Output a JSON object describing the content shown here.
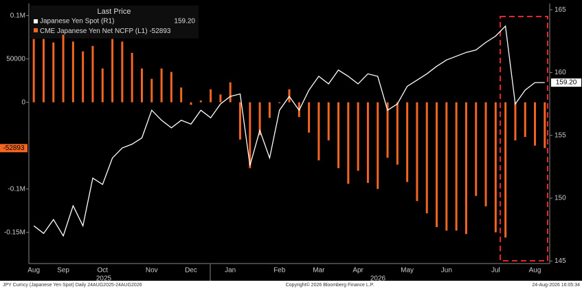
{
  "chart_data": {
    "type": "bar_line",
    "legend_title": "Last Price",
    "categories": [
      "Aug",
      null,
      null,
      "Sep",
      null,
      null,
      null,
      "Oct",
      null,
      null,
      null,
      null,
      "Nov",
      null,
      null,
      null,
      "Dec",
      null,
      null,
      null,
      "Jan",
      null,
      null,
      null,
      null,
      "Feb",
      null,
      null,
      null,
      "Mar",
      null,
      null,
      null,
      "Apr",
      null,
      null,
      null,
      null,
      "May",
      null,
      null,
      null,
      "Jun",
      null,
      null,
      null,
      null,
      "Jul",
      null,
      null,
      null,
      "Aug",
      null
    ],
    "year_labels": [
      "2025",
      "2026"
    ],
    "series": [
      {
        "name": "CME Japanese Yen Net NCFP (L1)",
        "color": "#f26522",
        "axis": "y",
        "values": [
          73000,
          73000,
          69000,
          78000,
          70000,
          58700,
          65000,
          39000,
          73000,
          70000,
          57000,
          39000,
          27000,
          39000,
          35000,
          17000,
          -3000,
          2000,
          15000,
          9000,
          23000,
          -43000,
          -76000,
          -38000,
          -18000,
          -1000,
          15000,
          -17000,
          -35000,
          -67000,
          -44000,
          -76000,
          -94000,
          -79000,
          -93000,
          -100000,
          -64000,
          -72000,
          -92000,
          -114000,
          -128000,
          -144000,
          -148000,
          -148000,
          -152000,
          -108000,
          -120000,
          -150000,
          -156000,
          -44000,
          -40000,
          -50000,
          -52893
        ],
        "value_labels": [
          null,
          null,
          null,
          null,
          null,
          null,
          null,
          null,
          null,
          null,
          null,
          null,
          null,
          null,
          null,
          null,
          null,
          null,
          null,
          null,
          null,
          null,
          null,
          null,
          null,
          null,
          null,
          null,
          null,
          null,
          null,
          null,
          null,
          null,
          null,
          null,
          null,
          null,
          null,
          null,
          null,
          null,
          null,
          null,
          null,
          null,
          null,
          null,
          null,
          null,
          null,
          null,
          "-52893"
        ]
      },
      {
        "name": "Japanese Yen Spot (R1)",
        "color": "#ffffff",
        "axis": "y2",
        "values": [
          147.8,
          147.2,
          148.3,
          147.0,
          149.4,
          147.8,
          151.6,
          151.1,
          153.2,
          154.0,
          154.3,
          154.8,
          157.0,
          156.2,
          155.6,
          156.2,
          155.9,
          157.0,
          156.4,
          157.5,
          158.1,
          158.3,
          152.6,
          155.4,
          153.2,
          157.0,
          158.1,
          157.0,
          158.6,
          159.7,
          159.1,
          160.2,
          159.7,
          159.1,
          159.9,
          159.7,
          157.0,
          157.5,
          158.9,
          159.4,
          159.9,
          160.5,
          161.0,
          161.3,
          161.6,
          161.8,
          162.4,
          162.9,
          163.7,
          157.5,
          158.6,
          159.2,
          159.2
        ],
        "value_labels": [
          null,
          null,
          null,
          null,
          null,
          null,
          null,
          null,
          null,
          null,
          null,
          null,
          null,
          null,
          null,
          null,
          null,
          null,
          null,
          null,
          null,
          null,
          null,
          null,
          null,
          null,
          null,
          null,
          null,
          null,
          null,
          null,
          null,
          null,
          null,
          null,
          null,
          null,
          null,
          null,
          null,
          null,
          null,
          null,
          null,
          null,
          null,
          null,
          null,
          null,
          null,
          null,
          "159.20"
        ]
      }
    ],
    "ylim": [
      -186000,
      114000
    ],
    "yticks": [
      {
        "value": 100000,
        "label": "0.1M"
      },
      50000,
      0,
      {
        "value": -100000,
        "label": "-0.1M"
      },
      {
        "value": -150000,
        "label": "-0.15M"
      }
    ],
    "y2lim": [
      144.8,
      165.5
    ],
    "y2ticks": [
      145,
      150,
      155,
      160,
      165
    ],
    "footer_left": "JPY Curncy (Japanese Yen Spot) Daily 24AUG2025-24AUG2026",
    "footer_center": "Copyright© 2026 Bloomberg Finance L.P.",
    "footer_right": "24-Aug-2026 16:05:34"
  }
}
